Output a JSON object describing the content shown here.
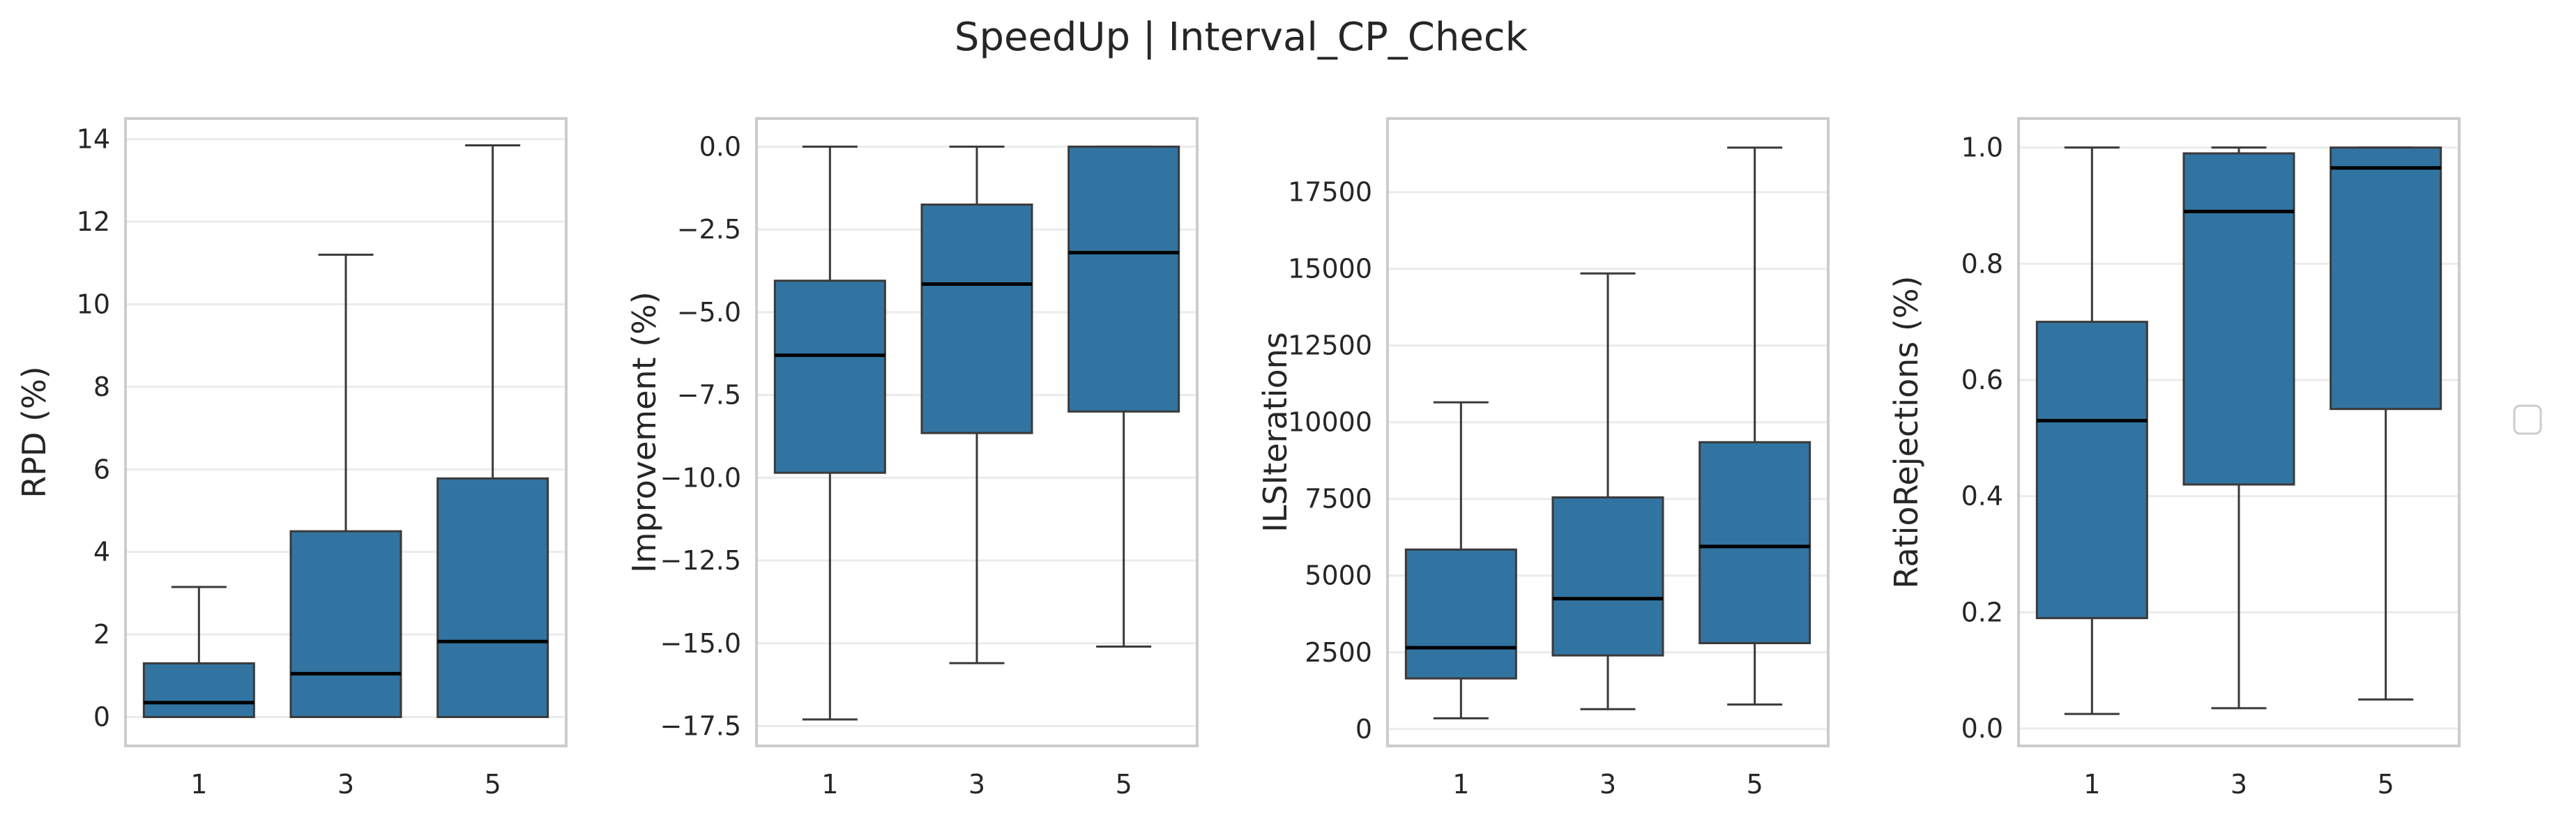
{
  "title": "SpeedUp | Interval_CP_Check",
  "colors": {
    "box_fill": "#3274a1",
    "box_edge": "#3a3a3a",
    "median": "#000000",
    "grid": "#ebebeb",
    "frame": "#cccccc"
  },
  "chart_data": [
    {
      "type": "box",
      "ylabel": "RPD (%)",
      "categories": [
        "1",
        "3",
        "5"
      ],
      "ylim": [
        -0.7,
        14.5
      ],
      "yticks": [
        0,
        2,
        4,
        6,
        8,
        10,
        12,
        14
      ],
      "ytick_labels": [
        "0",
        "2",
        "4",
        "6",
        "8",
        "10",
        "12",
        "14"
      ],
      "grid": true,
      "boxes": [
        {
          "whislo": 0.0,
          "q1": 0.0,
          "med": 0.35,
          "q3": 1.3,
          "whishi": 3.15
        },
        {
          "whislo": 0.0,
          "q1": 0.0,
          "med": 1.05,
          "q3": 4.5,
          "whishi": 11.2
        },
        {
          "whislo": 0.0,
          "q1": 0.0,
          "med": 1.83,
          "q3": 5.78,
          "whishi": 13.85
        }
      ]
    },
    {
      "type": "box",
      "ylabel": "Improvement (%)",
      "categories": [
        "1",
        "3",
        "5"
      ],
      "ylim": [
        -18.1,
        0.85
      ],
      "yticks": [
        0.0,
        -2.5,
        -5.0,
        -7.5,
        -10.0,
        -12.5,
        -15.0,
        -17.5
      ],
      "ytick_labels": [
        "0.0",
        "−2.5",
        "−5.0",
        "−7.5",
        "−10.0",
        "−12.5",
        "−15.0",
        "−17.5"
      ],
      "grid": true,
      "boxes": [
        {
          "whislo": -17.3,
          "q1": -9.85,
          "med": -6.3,
          "q3": -4.05,
          "whishi": 0.0
        },
        {
          "whislo": -15.6,
          "q1": -8.65,
          "med": -4.15,
          "q3": -1.75,
          "whishi": 0.0
        },
        {
          "whislo": -15.1,
          "q1": -8.0,
          "med": -3.2,
          "q3": 0.0,
          "whishi": 0.0
        }
      ]
    },
    {
      "type": "box",
      "ylabel": "ILSIterations",
      "categories": [
        "1",
        "3",
        "5"
      ],
      "ylim": [
        -550,
        19900
      ],
      "yticks": [
        0,
        2500,
        5000,
        7500,
        10000,
        12500,
        15000,
        17500
      ],
      "ytick_labels": [
        "0",
        "2500",
        "5000",
        "7500",
        "10000",
        "12500",
        "15000",
        "17500"
      ],
      "grid": true,
      "boxes": [
        {
          "whislo": 350,
          "q1": 1650,
          "med": 2650,
          "q3": 5850,
          "whishi": 10650
        },
        {
          "whislo": 650,
          "q1": 2400,
          "med": 4250,
          "q3": 7550,
          "whishi": 14850
        },
        {
          "whislo": 800,
          "q1": 2800,
          "med": 5950,
          "q3": 9350,
          "whishi": 18950
        }
      ]
    },
    {
      "type": "box",
      "ylabel": "RatioRejections (%)",
      "categories": [
        "1",
        "3",
        "5"
      ],
      "ylim": [
        -0.03,
        1.05
      ],
      "yticks": [
        0.0,
        0.2,
        0.4,
        0.6,
        0.8,
        1.0
      ],
      "ytick_labels": [
        "0.0",
        "0.2",
        "0.4",
        "0.6",
        "0.8",
        "1.0"
      ],
      "grid": true,
      "boxes": [
        {
          "whislo": 0.025,
          "q1": 0.19,
          "med": 0.53,
          "q3": 0.7,
          "whishi": 1.0
        },
        {
          "whislo": 0.035,
          "q1": 0.42,
          "med": 0.89,
          "q3": 0.99,
          "whishi": 1.0
        },
        {
          "whislo": 0.05,
          "q1": 0.55,
          "med": 0.965,
          "q3": 1.0,
          "whishi": 1.0
        }
      ]
    }
  ]
}
